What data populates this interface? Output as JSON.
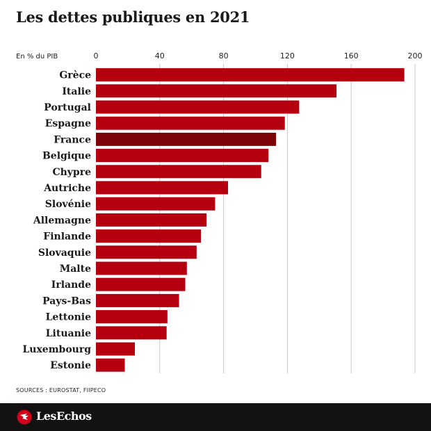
{
  "title": "Les dettes publiques en 2021",
  "sources": "SOURCES : EUROSTAT, FIIPECO",
  "brand": "LesEchos",
  "colors": {
    "bar": "#b5000f",
    "highlight": "#7d0409",
    "footer_bg": "#121212",
    "brand_mark": "#d4001a"
  },
  "chart_data": {
    "type": "bar",
    "orientation": "horizontal",
    "unit_label": "En % du PIB",
    "title": "Les dettes publiques en 2021",
    "xlim": [
      0,
      200
    ],
    "xticks": [
      0,
      40,
      80,
      120,
      160,
      200
    ],
    "grid": true,
    "highlight": "France",
    "categories": [
      "Grèce",
      "Italie",
      "Portugal",
      "Espagne",
      "France",
      "Belgique",
      "Chypre",
      "Autriche",
      "Slovénie",
      "Allemagne",
      "Finlande",
      "Slovaquie",
      "Malte",
      "Irlande",
      "Pays-Bas",
      "Lettonie",
      "Lituanie",
      "Luxembourg",
      "Estonie"
    ],
    "values": [
      193.3,
      150.8,
      127.4,
      118.4,
      112.9,
      108.2,
      103.6,
      82.8,
      74.7,
      69.3,
      65.8,
      63.1,
      57.0,
      56.0,
      52.1,
      44.8,
      44.3,
      24.4,
      18.1
    ]
  }
}
